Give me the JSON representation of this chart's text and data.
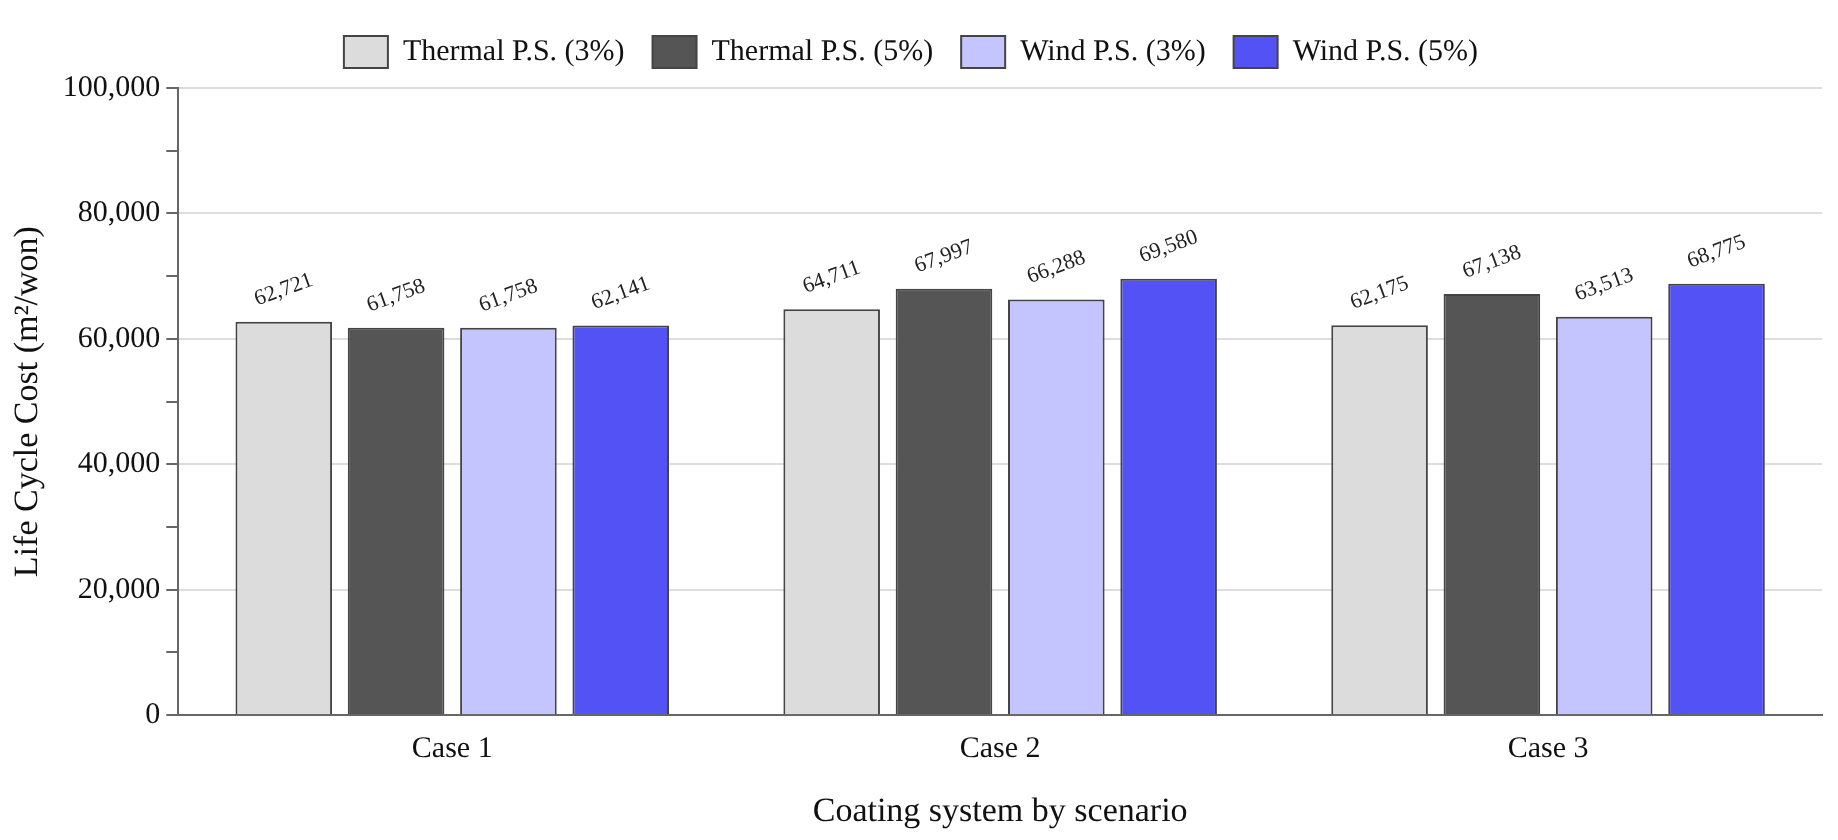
{
  "chart_data": {
    "type": "bar",
    "xlabel": "Coating system by scenario",
    "ylabel": "Life Cycle Cost (m²/won)",
    "categories": [
      "Case 1",
      "Case 2",
      "Case 3"
    ],
    "series": [
      {
        "name": "Thermal P.S. (3%)",
        "color": "#dcdcdc",
        "values": [
          62721,
          64711,
          62175
        ],
        "value_labels": [
          "62,721",
          "64,711",
          "62,175"
        ]
      },
      {
        "name": "Thermal P.S. (5%)",
        "color": "#555555",
        "values": [
          61758,
          67997,
          67138
        ],
        "value_labels": [
          "61,758",
          "67,997",
          "67,138"
        ]
      },
      {
        "name": "Wind P.S. (3%)",
        "color": "#c4c4ff",
        "values": [
          61758,
          66288,
          63513
        ],
        "value_labels": [
          "61,758",
          "66,288",
          "63,513"
        ]
      },
      {
        "name": "Wind P.S. (5%)",
        "color": "#5252f5",
        "values": [
          62141,
          69580,
          68775
        ],
        "value_labels": [
          "62,141",
          "69,580",
          "68,775"
        ]
      }
    ],
    "ylim": [
      0,
      100000
    ],
    "yticks": [
      0,
      {
        "value": 10000,
        "label": null
      },
      {
        "value": 20000,
        "label": "20,000"
      },
      {
        "value": 30000,
        "label": null
      },
      {
        "value": 40000,
        "label": "40,000"
      },
      {
        "value": 50000,
        "label": null
      },
      {
        "value": 60000,
        "label": "60,000"
      },
      {
        "value": 70000,
        "label": null
      },
      {
        "value": 80000,
        "label": "80,000"
      },
      {
        "value": 90000,
        "label": null
      },
      {
        "value": 100000,
        "label": "100,000"
      }
    ],
    "grid": "y",
    "legend": "top"
  }
}
